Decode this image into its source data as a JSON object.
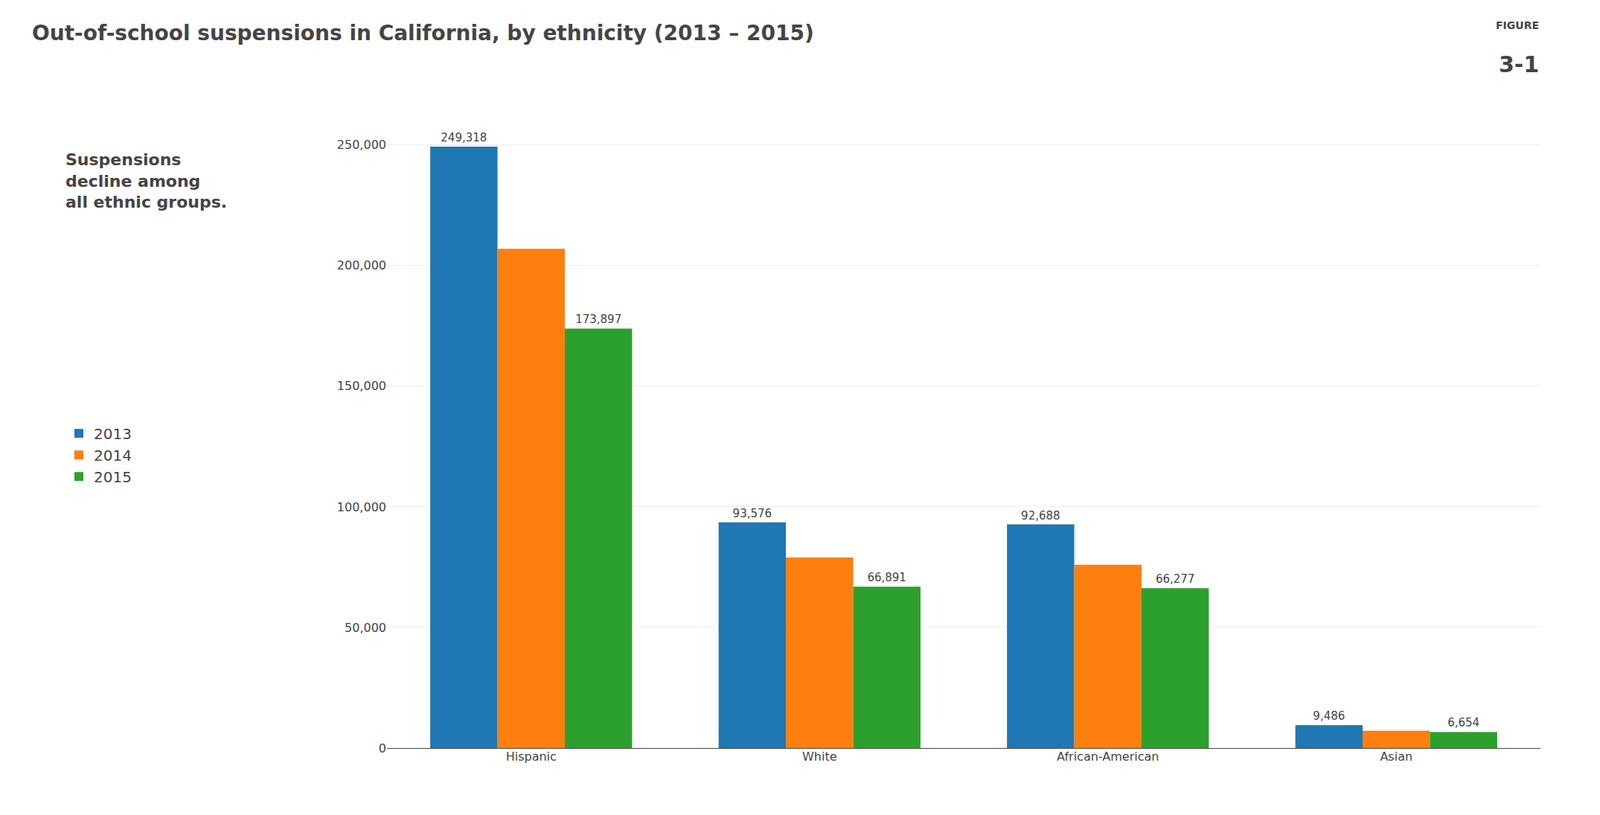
{
  "chart_data": {
    "type": "bar",
    "title": "Out-of-school suspensions in California, by ethnicity (2013 – 2015)",
    "subtitle": "Suspensions\ndecline among\nall ethnic groups.",
    "annotations": [
      "FIGURE",
      "3-1"
    ],
    "categories": [
      "Hispanic",
      "White",
      "African-American",
      "Asian"
    ],
    "series": [
      {
        "name": "2013",
        "values": [
          249318,
          93576,
          92688,
          9486
        ],
        "value_labels": [
          "249,318",
          "93,576",
          "92,688",
          "9,486"
        ]
      },
      {
        "name": "2014",
        "values": [
          207000,
          79000,
          76000,
          7200
        ],
        "value_labels": [
          null,
          null,
          null,
          null
        ]
      },
      {
        "name": "2015",
        "values": [
          173897,
          66891,
          66277,
          6654
        ],
        "value_labels": [
          "173,897",
          "66,891",
          "66,277",
          "6,654"
        ]
      }
    ],
    "data_labels": true,
    "ylim": [
      0,
      270000
    ],
    "yticks": [
      0,
      {
        "value": 50000,
        "label": "50,000"
      },
      {
        "value": 100000,
        "label": "100,000"
      },
      {
        "value": 150000,
        "label": "150,000"
      },
      {
        "value": 200000,
        "label": "200,000"
      },
      {
        "value": 250000,
        "label": "250,000"
      }
    ],
    "grid": true,
    "legend": "left"
  }
}
